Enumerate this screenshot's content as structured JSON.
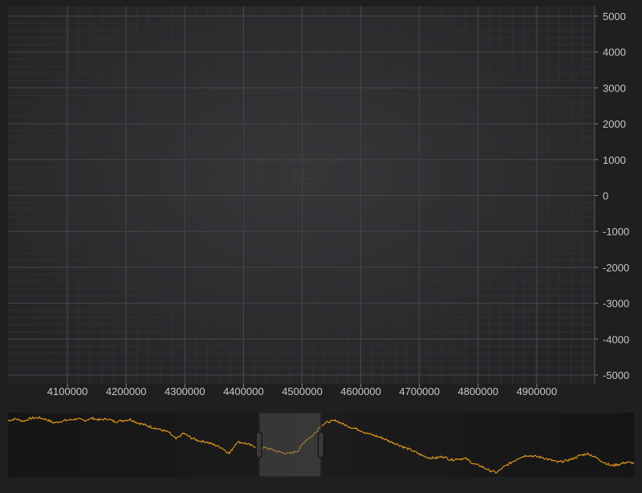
{
  "chart_data": {
    "type": "line",
    "main": {
      "x_ticks": [
        4100000,
        4200000,
        4300000,
        4400000,
        4500000,
        4600000,
        4700000,
        4800000,
        4900000
      ],
      "x_tick_labels": [
        "4100000",
        "4200000",
        "4300000",
        "4400000",
        "4500000",
        "4600000",
        "4700000",
        "4800000",
        "4900000"
      ],
      "y_ticks": [
        5000,
        4000,
        3000,
        2000,
        1000,
        0,
        -1000,
        -2000,
        -3000,
        -4000,
        -5000
      ],
      "y_tick_labels": [
        "5000",
        "4000",
        "3000",
        "2000",
        "1000",
        "0",
        "-1000",
        "-2000",
        "-3000",
        "-4000",
        "-5000"
      ],
      "xlim": [
        4000000,
        5000000
      ],
      "ylim": [
        -5000,
        5000
      ],
      "grid": true,
      "series": [
        {
          "x": [],
          "y": []
        }
      ]
    },
    "overview": {
      "type": "line",
      "color": "#e89c1e",
      "selection": [
        0.401,
        0.5
      ],
      "series": [
        {
          "y": [
            0.92,
            0.95,
            0.91,
            0.96,
            0.97,
            0.94,
            0.88,
            0.91,
            0.93,
            0.95,
            0.92,
            0.96,
            0.93,
            0.95,
            0.9,
            0.92,
            0.94,
            0.88,
            0.84,
            0.8,
            0.76,
            0.72,
            0.6,
            0.7,
            0.62,
            0.57,
            0.55,
            0.5,
            0.45,
            0.35,
            0.55,
            0.53,
            0.48,
            0.46,
            0.44,
            0.4,
            0.36,
            0.35,
            0.4,
            0.58,
            0.67,
            0.84,
            0.9,
            0.92,
            0.85,
            0.8,
            0.76,
            0.7,
            0.66,
            0.62,
            0.56,
            0.51,
            0.45,
            0.4,
            0.33,
            0.28,
            0.27,
            0.3,
            0.24,
            0.26,
            0.26,
            0.17,
            0.13,
            0.06,
            0.02,
            0.12,
            0.2,
            0.28,
            0.32,
            0.3,
            0.28,
            0.24,
            0.2,
            0.22,
            0.26,
            0.32,
            0.35,
            0.28,
            0.2,
            0.14,
            0.16,
            0.2,
            0.18
          ],
          "color": "#e89c1e"
        }
      ]
    }
  },
  "colors": {
    "background": "#1e1f21",
    "plot_background": "#262729",
    "grid_major": "#444649",
    "grid_minor": "#303134",
    "tick_label": "#c8c8c8",
    "overview_background": "#141414",
    "series": "#e89c1e"
  }
}
